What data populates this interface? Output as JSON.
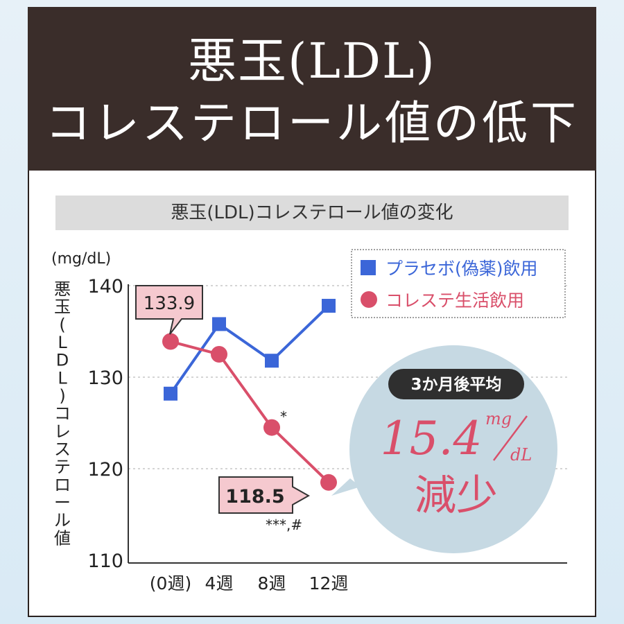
{
  "header": {
    "title_line1": "悪玉(LDL)",
    "title_line2": "コレステロール値の低下"
  },
  "chart_data": {
    "type": "line",
    "title": "悪玉(LDL)コレステロール値の変化",
    "unit": "(mg/dL)",
    "ylabel": "悪玉(LDL)コレステロール値",
    "categories": [
      "(0週)",
      "4週",
      "8週",
      "12週"
    ],
    "ylim": [
      110,
      140
    ],
    "yticks": [
      140,
      130,
      120,
      110
    ],
    "grid": true,
    "legend_position": "top-right",
    "series": [
      {
        "name": "プラセボ(偽薬)飲用",
        "color": "#3b66d8",
        "marker": "square",
        "values": [
          128.2,
          135.8,
          131.8,
          137.8
        ]
      },
      {
        "name": "コレステ生活飲用",
        "color": "#d94f6a",
        "marker": "circle",
        "values": [
          133.9,
          132.5,
          124.5,
          118.5
        ]
      }
    ],
    "annotations": {
      "start_value": "133.9",
      "end_value": "118.5",
      "sig_8w": "*",
      "sig_12w": "***,#"
    },
    "callout": {
      "badge": "3か月後平均",
      "value": "15.4",
      "unit_top": "mg",
      "unit_bottom": "dL",
      "label": "減少"
    }
  }
}
